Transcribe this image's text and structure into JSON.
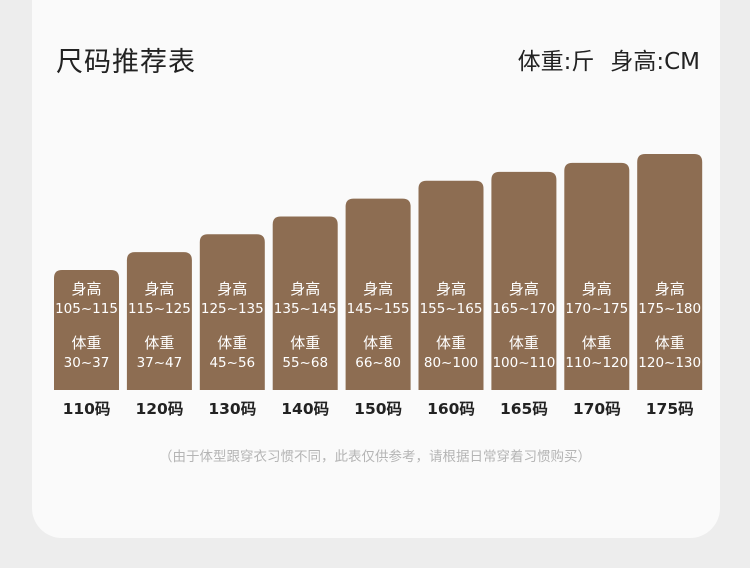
{
  "header": {
    "title": "尺码推荐表",
    "unit_weight": "体重:斤",
    "unit_height": "身高:CM"
  },
  "colors": {
    "bar": "#8d6d52",
    "bar_text": "#ffffff",
    "background": "#fafafa"
  },
  "chart_data": {
    "type": "bar",
    "title": "尺码推荐表",
    "height_label": "身高",
    "weight_label": "体重",
    "categories": [
      "110码",
      "120码",
      "130码",
      "140码",
      "150码",
      "160码",
      "165码",
      "170码",
      "175码"
    ],
    "series": [
      {
        "name": "身高",
        "ranges": [
          "105~115",
          "115~125",
          "125~135",
          "135~145",
          "145~155",
          "155~165",
          "165~170",
          "170~175",
          "175~180"
        ],
        "values": [
          [
            105,
            115
          ],
          [
            115,
            125
          ],
          [
            125,
            135
          ],
          [
            135,
            145
          ],
          [
            145,
            155
          ],
          [
            155,
            165
          ],
          [
            165,
            170
          ],
          [
            170,
            175
          ],
          [
            175,
            180
          ]
        ]
      },
      {
        "name": "体重",
        "ranges": [
          "30~37",
          "37~47",
          "45~56",
          "55~68",
          "66~80",
          "80~100",
          "100~110",
          "110~120",
          "120~130"
        ],
        "values": [
          [
            30,
            37
          ],
          [
            37,
            47
          ],
          [
            45,
            56
          ],
          [
            55,
            68
          ],
          [
            66,
            80
          ],
          [
            80,
            100
          ],
          [
            100,
            110
          ],
          [
            110,
            120
          ],
          [
            120,
            130
          ]
        ]
      }
    ]
  },
  "footer": {
    "note": "（由于体型跟穿衣习惯不同，此表仅供参考，请根据日常穿着习惯购买）"
  }
}
